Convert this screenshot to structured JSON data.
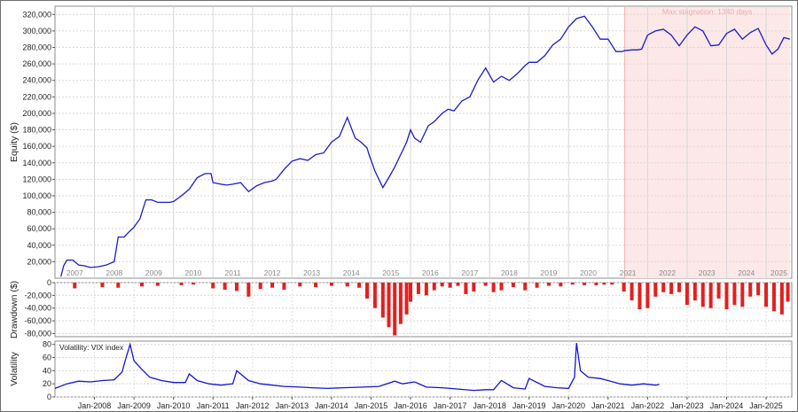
{
  "chart_data": [
    {
      "type": "line",
      "ylabel": "Equity ($)",
      "ylim": [
        0,
        330000
      ],
      "yticks": [
        "20,000",
        "40,000",
        "60,000",
        "80,000",
        "100,000",
        "120,000",
        "140,000",
        "160,000",
        "180,000",
        "200,000",
        "220,000",
        "240,000",
        "260,000",
        "280,000",
        "300,000",
        "320,000"
      ],
      "ytick_values": [
        20000,
        40000,
        60000,
        80000,
        100000,
        120000,
        140000,
        160000,
        180000,
        200000,
        220000,
        240000,
        260000,
        280000,
        300000,
        320000
      ],
      "year_labels": [
        "2007",
        "2008",
        "2009",
        "2010",
        "2011",
        "2012",
        "2013",
        "2014",
        "2015",
        "2016",
        "2017",
        "2018",
        "2019",
        "2020",
        "2021",
        "2022",
        "2023",
        "2024",
        "2025"
      ],
      "year_boundaries": [
        2008,
        2009,
        2010,
        2011,
        2012,
        2013,
        2014,
        2015,
        2016,
        2017,
        2018,
        2019,
        2020,
        2021,
        2022,
        2023,
        2024,
        2025
      ],
      "stagnation": {
        "label": "Max stagnation: 1340 days",
        "start": 2021.42,
        "end": 2025.6
      },
      "line_color": "#1c1cc8",
      "stagnation_color": "#fde8e8",
      "series": [
        {
          "x": [
            2007.15,
            2007.22,
            2007.3,
            2007.45,
            2007.6,
            2007.75,
            2007.9,
            2008.1,
            2008.3,
            2008.5,
            2008.55,
            2008.6,
            2008.75,
            2008.85,
            2009.0,
            2009.15,
            2009.3,
            2009.45,
            2009.6,
            2009.75,
            2009.9,
            2010.0,
            2010.2,
            2010.4,
            2010.6,
            2010.8,
            2010.95,
            2011.0,
            2011.2,
            2011.35,
            2011.5,
            2011.7,
            2011.9,
            2012.1,
            2012.3,
            2012.5,
            2012.6,
            2012.8,
            2013.0,
            2013.2,
            2013.4,
            2013.6,
            2013.8,
            2014.0,
            2014.2,
            2014.4,
            2014.6,
            2014.75,
            2014.9,
            2014.95,
            2015.1,
            2015.3,
            2015.45,
            2015.6,
            2015.75,
            2015.9,
            2016.0,
            2016.1,
            2016.25,
            2016.45,
            2016.6,
            2016.8,
            2016.95,
            2017.1,
            2017.3,
            2017.5,
            2017.7,
            2017.9,
            2018.1,
            2018.3,
            2018.5,
            2018.7,
            2018.9,
            2019.0,
            2019.2,
            2019.4,
            2019.6,
            2019.8,
            2020.0,
            2020.2,
            2020.4,
            2020.6,
            2020.8,
            2021.0,
            2021.2,
            2021.35,
            2021.42,
            2021.6,
            2021.75,
            2021.85,
            2022.0,
            2022.2,
            2022.4,
            2022.6,
            2022.8,
            2023.0,
            2023.2,
            2023.4,
            2023.6,
            2023.8,
            2024.0,
            2024.2,
            2024.4,
            2024.6,
            2024.8,
            2025.0,
            2025.15,
            2025.3,
            2025.45,
            2025.6
          ],
          "y": [
            2000,
            15000,
            22000,
            22000,
            16000,
            15000,
            13000,
            14000,
            16000,
            20000,
            35000,
            50000,
            50000,
            55000,
            62000,
            72000,
            95000,
            95000,
            92000,
            92000,
            92000,
            93000,
            100000,
            108000,
            122000,
            127000,
            127000,
            116000,
            114000,
            113000,
            114000,
            116000,
            105000,
            112000,
            116000,
            118000,
            120000,
            132000,
            142000,
            145000,
            143000,
            150000,
            152000,
            165000,
            172000,
            195000,
            170000,
            165000,
            158000,
            150000,
            130000,
            110000,
            122000,
            135000,
            150000,
            165000,
            180000,
            170000,
            165000,
            185000,
            190000,
            200000,
            205000,
            203000,
            215000,
            220000,
            240000,
            255000,
            238000,
            245000,
            240000,
            248000,
            258000,
            262000,
            262000,
            270000,
            283000,
            290000,
            305000,
            315000,
            318000,
            305000,
            290000,
            290000,
            275000,
            275000,
            276000,
            277000,
            277000,
            278000,
            295000,
            300000,
            302000,
            295000,
            282000,
            295000,
            305000,
            300000,
            282000,
            283000,
            297000,
            302000,
            290000,
            298000,
            303000,
            283000,
            272000,
            278000,
            292000,
            290000
          ]
        }
      ]
    },
    {
      "type": "bar",
      "ylabel": "Drawdown ($)",
      "ylim": [
        -85000,
        0
      ],
      "yticks": [
        "0",
        "-20,000",
        "-40,000",
        "-60,000",
        "-80,000"
      ],
      "ytick_values": [
        0,
        -20000,
        -40000,
        -60000,
        -80000
      ],
      "bar_color": "#e61e1e",
      "x": [
        2007.5,
        2008.2,
        2008.6,
        2009.2,
        2009.6,
        2010.2,
        2010.5,
        2011.0,
        2011.3,
        2011.6,
        2011.9,
        2012.2,
        2012.5,
        2012.8,
        2013.2,
        2013.6,
        2014.0,
        2014.4,
        2014.7,
        2014.9,
        2015.1,
        2015.3,
        2015.45,
        2015.6,
        2015.75,
        2015.9,
        2016.0,
        2016.2,
        2016.4,
        2016.6,
        2016.8,
        2017.0,
        2017.2,
        2017.4,
        2017.6,
        2017.9,
        2018.1,
        2018.3,
        2018.6,
        2018.9,
        2019.2,
        2019.5,
        2019.8,
        2020.1,
        2020.4,
        2020.7,
        2020.9,
        2021.1,
        2021.4,
        2021.6,
        2021.8,
        2022.0,
        2022.2,
        2022.4,
        2022.6,
        2022.8,
        2023.0,
        2023.2,
        2023.4,
        2023.6,
        2023.8,
        2024.0,
        2024.2,
        2024.4,
        2024.6,
        2024.8,
        2025.0,
        2025.2,
        2025.4,
        2025.55
      ],
      "y": [
        -9000,
        -7000,
        -8000,
        -6000,
        -5000,
        -4000,
        -3000,
        -9000,
        -11000,
        -13000,
        -22000,
        -10000,
        -8000,
        -11000,
        -6000,
        -7000,
        -5000,
        -6000,
        -8000,
        -25000,
        -40000,
        -55000,
        -70000,
        -83000,
        -65000,
        -50000,
        -30000,
        -18000,
        -20000,
        -12000,
        -6000,
        -8000,
        -5000,
        -18000,
        -14000,
        -5000,
        -15000,
        -12000,
        -7000,
        -12000,
        -8000,
        -5000,
        -6000,
        -3000,
        -4000,
        -4000,
        -3000,
        -3000,
        -14000,
        -28000,
        -42000,
        -40000,
        -22000,
        -15000,
        -18000,
        -15000,
        -35000,
        -28000,
        -38000,
        -40000,
        -25000,
        -42000,
        -35000,
        -38000,
        -22000,
        -20000,
        -38000,
        -45000,
        -50000,
        -30000
      ]
    },
    {
      "type": "line",
      "ylabel": "Volatility",
      "legend": "Volatility: VIX index",
      "ylim": [
        0,
        85
      ],
      "yticks": [
        "0",
        "20",
        "40",
        "60",
        "80"
      ],
      "ytick_values": [
        0,
        20,
        40,
        60,
        80
      ],
      "line_color": "#1414d6",
      "xticks": [
        "Jan-2008",
        "Jan-2009",
        "Jan-2010",
        "Jan-2011",
        "Jan-2012",
        "Jan-2013",
        "Jan-2014",
        "Jan-2015",
        "Jan-2016",
        "Jan-2017",
        "Jan-2018",
        "Jan-2019",
        "Jan-2020",
        "Jan-2021",
        "Jan-2022",
        "Jan-2023",
        "Jan-2024",
        "Jan-2025"
      ],
      "xtick_values": [
        2008,
        2009,
        2010,
        2011,
        2012,
        2013,
        2014,
        2015,
        2016,
        2017,
        2018,
        2019,
        2020,
        2021,
        2022,
        2023,
        2024,
        2025
      ],
      "series": [
        {
          "x": [
            2007.0,
            2007.3,
            2007.6,
            2007.9,
            2008.2,
            2008.5,
            2008.7,
            2008.8,
            2008.9,
            2009.0,
            2009.2,
            2009.4,
            2009.7,
            2010.0,
            2010.3,
            2010.4,
            2010.6,
            2010.9,
            2011.2,
            2011.5,
            2011.6,
            2011.7,
            2011.9,
            2012.2,
            2012.5,
            2012.8,
            2013.2,
            2013.5,
            2013.9,
            2014.3,
            2014.8,
            2015.2,
            2015.6,
            2015.8,
            2016.1,
            2016.4,
            2016.8,
            2017.2,
            2017.6,
            2017.9,
            2018.1,
            2018.3,
            2018.6,
            2018.9,
            2019.0,
            2019.4,
            2019.7,
            2020.0,
            2020.15,
            2020.2,
            2020.3,
            2020.5,
            2020.8,
            2021.0,
            2021.3,
            2021.6,
            2021.9,
            2022.2,
            2022.3
          ],
          "y": [
            13,
            20,
            24,
            23,
            25,
            26,
            38,
            60,
            80,
            55,
            42,
            30,
            25,
            22,
            22,
            35,
            25,
            20,
            18,
            20,
            40,
            35,
            25,
            20,
            18,
            16,
            15,
            14,
            13,
            14,
            15,
            16,
            24,
            20,
            23,
            15,
            14,
            12,
            10,
            11,
            11,
            25,
            14,
            12,
            28,
            16,
            14,
            13,
            30,
            82,
            40,
            30,
            28,
            25,
            20,
            18,
            20,
            18,
            19
          ]
        }
      ]
    }
  ]
}
